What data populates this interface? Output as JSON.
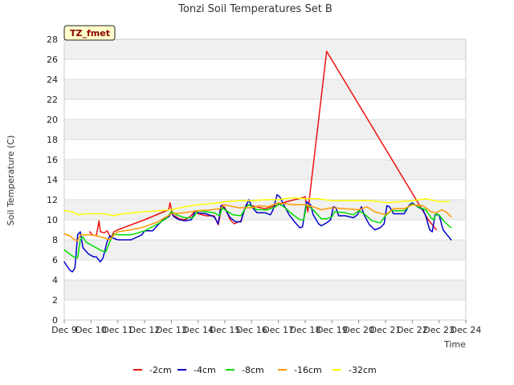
{
  "chart_data": {
    "type": "line",
    "title": "Tonzi Soil Temperatures Set B",
    "xlabel": "Time",
    "ylabel": "Soil Temperature (C)",
    "badge": "TZ_fmet",
    "ylim": [
      0,
      28
    ],
    "yticks": [
      0,
      2,
      4,
      6,
      8,
      10,
      12,
      14,
      16,
      18,
      20,
      22,
      24,
      26,
      28
    ],
    "xlim": [
      9,
      24
    ],
    "xticks": [
      {
        "x": 9,
        "label": "Dec 9"
      },
      {
        "x": 10,
        "label": "Dec 10"
      },
      {
        "x": 11,
        "label": "Dec 11"
      },
      {
        "x": 12,
        "label": "Dec 12"
      },
      {
        "x": 13,
        "label": "Dec 13"
      },
      {
        "x": 14,
        "label": "Dec 14"
      },
      {
        "x": 15,
        "label": "Dec 15"
      },
      {
        "x": 16,
        "label": "Dec 16"
      },
      {
        "x": 17,
        "label": "Dec 17"
      },
      {
        "x": 18,
        "label": "Dec 18"
      },
      {
        "x": 19,
        "label": "Dec 19"
      },
      {
        "x": 20,
        "label": "Dec 20"
      },
      {
        "x": 21,
        "label": "Dec 21"
      },
      {
        "x": 22,
        "label": "Dec 22"
      },
      {
        "x": 23,
        "label": "Dec 23"
      },
      {
        "x": 24,
        "label": "Dec 24"
      }
    ],
    "grid": "horizontal bands",
    "legend_position": "bottom",
    "series": [
      {
        "name": "-2cm",
        "color": "#ee1111",
        "points": [
          [
            9.95,
            8.8
          ],
          [
            10.05,
            8.5
          ],
          [
            10.2,
            8.4
          ],
          [
            10.3,
            9.9
          ],
          [
            10.35,
            8.8
          ],
          [
            10.5,
            8.7
          ],
          [
            10.6,
            8.9
          ],
          [
            10.75,
            8.2
          ],
          [
            10.85,
            8.8
          ],
          [
            11.0,
            9.0
          ],
          [
            12.0,
            10.0
          ],
          [
            12.9,
            11.0
          ],
          [
            12.95,
            11.7
          ],
          [
            13.05,
            10.5
          ],
          [
            13.3,
            10.1
          ],
          [
            13.5,
            10.0
          ],
          [
            13.7,
            10.3
          ],
          [
            13.9,
            10.9
          ],
          [
            14.0,
            10.6
          ],
          [
            14.3,
            10.4
          ],
          [
            14.6,
            10.4
          ],
          [
            14.75,
            9.5
          ],
          [
            14.9,
            11.5
          ],
          [
            15.0,
            11.2
          ],
          [
            15.2,
            10.0
          ],
          [
            15.35,
            9.6
          ],
          [
            15.6,
            9.9
          ],
          [
            15.8,
            11.5
          ],
          [
            16.0,
            11.4
          ],
          [
            16.5,
            11.1
          ],
          [
            17.0,
            11.5
          ],
          [
            17.3,
            11.8
          ],
          [
            17.6,
            12.0
          ],
          [
            17.9,
            12.2
          ],
          [
            18.0,
            12.3
          ],
          [
            18.1,
            10.8
          ],
          [
            18.8,
            26.8
          ],
          [
            22.6,
            10.0
          ],
          [
            22.9,
            9.0
          ]
        ]
      },
      {
        "name": "-4cm",
        "color": "#0000cc",
        "points": [
          [
            9.0,
            5.8
          ],
          [
            9.1,
            5.4
          ],
          [
            9.2,
            5.0
          ],
          [
            9.3,
            4.8
          ],
          [
            9.4,
            5.2
          ],
          [
            9.5,
            8.5
          ],
          [
            9.6,
            8.8
          ],
          [
            9.7,
            7.2
          ],
          [
            9.9,
            6.6
          ],
          [
            10.1,
            6.3
          ],
          [
            10.2,
            6.3
          ],
          [
            10.35,
            5.8
          ],
          [
            10.45,
            6.2
          ],
          [
            10.6,
            7.8
          ],
          [
            10.7,
            8.4
          ],
          [
            10.8,
            8.2
          ],
          [
            11.0,
            8.0
          ],
          [
            11.5,
            8.0
          ],
          [
            11.9,
            8.5
          ],
          [
            12.0,
            8.9
          ],
          [
            12.3,
            8.9
          ],
          [
            12.5,
            9.5
          ],
          [
            12.7,
            10.0
          ],
          [
            12.9,
            10.3
          ],
          [
            13.0,
            10.7
          ],
          [
            13.1,
            10.3
          ],
          [
            13.3,
            10.0
          ],
          [
            13.5,
            9.9
          ],
          [
            13.75,
            10.0
          ],
          [
            13.9,
            10.9
          ],
          [
            14.0,
            10.7
          ],
          [
            14.3,
            10.6
          ],
          [
            14.6,
            10.3
          ],
          [
            14.75,
            9.6
          ],
          [
            14.85,
            11.4
          ],
          [
            15.0,
            11.1
          ],
          [
            15.2,
            10.2
          ],
          [
            15.4,
            9.8
          ],
          [
            15.6,
            9.8
          ],
          [
            15.75,
            11.2
          ],
          [
            15.9,
            12.0
          ],
          [
            16.0,
            11.3
          ],
          [
            16.2,
            10.7
          ],
          [
            16.5,
            10.7
          ],
          [
            16.7,
            10.5
          ],
          [
            16.8,
            11.0
          ],
          [
            16.95,
            12.5
          ],
          [
            17.05,
            12.3
          ],
          [
            17.2,
            11.5
          ],
          [
            17.4,
            10.5
          ],
          [
            17.6,
            9.8
          ],
          [
            17.8,
            9.2
          ],
          [
            17.9,
            9.3
          ],
          [
            18.0,
            11.0
          ],
          [
            18.05,
            11.8
          ],
          [
            18.2,
            11.5
          ],
          [
            18.3,
            10.5
          ],
          [
            18.5,
            9.6
          ],
          [
            18.6,
            9.4
          ],
          [
            18.8,
            9.7
          ],
          [
            18.95,
            10.0
          ],
          [
            19.05,
            11.3
          ],
          [
            19.15,
            11.2
          ],
          [
            19.25,
            10.4
          ],
          [
            19.5,
            10.4
          ],
          [
            19.8,
            10.2
          ],
          [
            19.95,
            10.5
          ],
          [
            20.1,
            11.3
          ],
          [
            20.2,
            10.5
          ],
          [
            20.4,
            9.5
          ],
          [
            20.6,
            9.0
          ],
          [
            20.8,
            9.2
          ],
          [
            20.95,
            9.6
          ],
          [
            21.05,
            11.4
          ],
          [
            21.15,
            11.3
          ],
          [
            21.3,
            10.6
          ],
          [
            21.5,
            10.6
          ],
          [
            21.7,
            10.6
          ],
          [
            21.9,
            11.5
          ],
          [
            22.0,
            11.7
          ],
          [
            22.2,
            11.3
          ],
          [
            22.4,
            11.0
          ],
          [
            22.5,
            10.4
          ],
          [
            22.65,
            9.0
          ],
          [
            22.75,
            8.8
          ],
          [
            22.85,
            10.5
          ],
          [
            23.0,
            10.5
          ],
          [
            23.15,
            9.0
          ],
          [
            23.3,
            8.5
          ],
          [
            23.45,
            8.0
          ]
        ]
      },
      {
        "name": "-8cm",
        "color": "#00dd00",
        "points": [
          [
            9.0,
            7.0
          ],
          [
            9.2,
            6.6
          ],
          [
            9.35,
            6.3
          ],
          [
            9.5,
            6.2
          ],
          [
            9.6,
            8.0
          ],
          [
            9.7,
            8.3
          ],
          [
            9.8,
            7.8
          ],
          [
            10.0,
            7.5
          ],
          [
            10.2,
            7.2
          ],
          [
            10.4,
            6.9
          ],
          [
            10.55,
            6.8
          ],
          [
            10.7,
            7.8
          ],
          [
            10.85,
            8.6
          ],
          [
            11.0,
            8.5
          ],
          [
            11.5,
            8.5
          ],
          [
            12.0,
            8.9
          ],
          [
            12.5,
            9.6
          ],
          [
            12.8,
            10.1
          ],
          [
            13.0,
            10.8
          ],
          [
            13.2,
            10.5
          ],
          [
            13.5,
            10.2
          ],
          [
            13.8,
            10.2
          ],
          [
            14.0,
            10.9
          ],
          [
            14.3,
            10.8
          ],
          [
            14.6,
            10.7
          ],
          [
            14.8,
            10.4
          ],
          [
            14.9,
            11.2
          ],
          [
            15.0,
            11.0
          ],
          [
            15.3,
            10.5
          ],
          [
            15.6,
            10.4
          ],
          [
            15.8,
            11.3
          ],
          [
            15.9,
            11.5
          ],
          [
            16.2,
            11.0
          ],
          [
            16.6,
            11.0
          ],
          [
            16.9,
            11.3
          ],
          [
            17.0,
            11.6
          ],
          [
            17.2,
            11.3
          ],
          [
            17.5,
            10.6
          ],
          [
            17.8,
            10.0
          ],
          [
            17.95,
            10.0
          ],
          [
            18.05,
            11.5
          ],
          [
            18.3,
            11.0
          ],
          [
            18.6,
            10.1
          ],
          [
            18.8,
            10.1
          ],
          [
            19.0,
            10.3
          ],
          [
            19.1,
            10.8
          ],
          [
            19.5,
            10.7
          ],
          [
            19.8,
            10.5
          ],
          [
            20.0,
            10.9
          ],
          [
            20.2,
            10.6
          ],
          [
            20.5,
            9.9
          ],
          [
            20.8,
            9.7
          ],
          [
            21.0,
            10.4
          ],
          [
            21.2,
            10.9
          ],
          [
            21.7,
            10.9
          ],
          [
            21.9,
            11.4
          ],
          [
            22.0,
            11.6
          ],
          [
            22.3,
            11.2
          ],
          [
            22.5,
            11.0
          ],
          [
            22.7,
            10.2
          ],
          [
            22.8,
            10.0
          ],
          [
            22.9,
            10.6
          ],
          [
            23.0,
            10.5
          ],
          [
            23.2,
            9.8
          ],
          [
            23.45,
            9.2
          ]
        ]
      },
      {
        "name": "-16cm",
        "color": "#ff9900",
        "points": [
          [
            9.0,
            8.6
          ],
          [
            9.2,
            8.4
          ],
          [
            9.4,
            8.0
          ],
          [
            9.5,
            7.9
          ],
          [
            9.6,
            8.5
          ],
          [
            9.8,
            8.5
          ],
          [
            10.0,
            8.5
          ],
          [
            10.2,
            8.4
          ],
          [
            10.5,
            8.2
          ],
          [
            10.7,
            8.0
          ],
          [
            10.9,
            8.6
          ],
          [
            11.0,
            8.8
          ],
          [
            11.5,
            9.0
          ],
          [
            12.0,
            9.3
          ],
          [
            12.5,
            9.8
          ],
          [
            13.0,
            10.6
          ],
          [
            13.5,
            10.7
          ],
          [
            14.0,
            10.9
          ],
          [
            14.5,
            11.0
          ],
          [
            14.8,
            11.1
          ],
          [
            15.0,
            11.5
          ],
          [
            15.5,
            11.2
          ],
          [
            16.0,
            11.2
          ],
          [
            16.3,
            11.4
          ],
          [
            16.6,
            11.3
          ],
          [
            17.0,
            11.7
          ],
          [
            17.3,
            11.6
          ],
          [
            17.6,
            11.5
          ],
          [
            18.0,
            11.5
          ],
          [
            18.3,
            11.3
          ],
          [
            18.6,
            11.0
          ],
          [
            19.0,
            11.2
          ],
          [
            19.5,
            11.1
          ],
          [
            20.0,
            11.0
          ],
          [
            20.3,
            11.3
          ],
          [
            20.6,
            10.8
          ],
          [
            21.0,
            10.5
          ],
          [
            21.3,
            11.1
          ],
          [
            21.7,
            11.1
          ],
          [
            22.0,
            11.5
          ],
          [
            22.4,
            11.4
          ],
          [
            22.7,
            10.8
          ],
          [
            22.9,
            10.7
          ],
          [
            23.1,
            11.0
          ],
          [
            23.3,
            10.7
          ],
          [
            23.45,
            10.3
          ]
        ]
      },
      {
        "name": "-32cm",
        "color": "#ffff00",
        "points": [
          [
            9.0,
            10.9
          ],
          [
            9.3,
            10.8
          ],
          [
            9.5,
            10.5
          ],
          [
            9.8,
            10.6
          ],
          [
            10.2,
            10.6
          ],
          [
            10.5,
            10.6
          ],
          [
            10.8,
            10.4
          ],
          [
            11.2,
            10.6
          ],
          [
            11.6,
            10.7
          ],
          [
            12.0,
            10.8
          ],
          [
            12.5,
            10.9
          ],
          [
            13.0,
            11.0
          ],
          [
            13.5,
            11.3
          ],
          [
            14.0,
            11.5
          ],
          [
            14.5,
            11.6
          ],
          [
            15.0,
            11.8
          ],
          [
            15.5,
            11.9
          ],
          [
            16.0,
            11.9
          ],
          [
            16.5,
            12.0
          ],
          [
            17.0,
            12.0
          ],
          [
            17.5,
            12.2
          ],
          [
            18.0,
            12.1
          ],
          [
            18.5,
            12.1
          ],
          [
            19.0,
            11.9
          ],
          [
            19.5,
            11.9
          ],
          [
            20.0,
            11.9
          ],
          [
            20.5,
            11.9
          ],
          [
            21.0,
            11.7
          ],
          [
            21.5,
            11.8
          ],
          [
            22.0,
            11.9
          ],
          [
            22.5,
            12.1
          ],
          [
            23.0,
            11.8
          ],
          [
            23.4,
            11.8
          ]
        ]
      }
    ]
  }
}
